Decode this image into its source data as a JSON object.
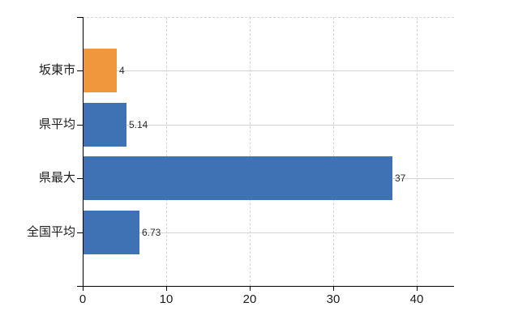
{
  "chart_data": {
    "type": "bar",
    "orientation": "horizontal",
    "title": "",
    "categories": [
      "坂東市",
      "県平均",
      "県最大",
      "全国平均"
    ],
    "values": [
      4,
      5.14,
      37,
      6.73
    ],
    "value_labels": [
      "4",
      "5.14",
      "37",
      "6.73"
    ],
    "bar_colors": [
      "#f0963c",
      "#3f72b5",
      "#3f72b5",
      "#3f72b5"
    ],
    "x_ticks": [
      "0",
      "10",
      "20",
      "30",
      "40"
    ],
    "x_tick_values": [
      0,
      10,
      20,
      30,
      40
    ],
    "xlim": [
      0,
      44.5
    ],
    "ylabel": "",
    "xlabel": "",
    "legend": "none",
    "grid": {
      "vertical": "dashed",
      "horizontal": "solid",
      "top_boundary": "dashed"
    }
  },
  "colors": {
    "background": "#ffffff",
    "axis": "#000000",
    "gridline": "#d3d3d3",
    "top_border": "#d9d9d9",
    "text": "#1c1c1c",
    "bar_blue": "#3f72b5",
    "bar_orange": "#f0963c"
  }
}
